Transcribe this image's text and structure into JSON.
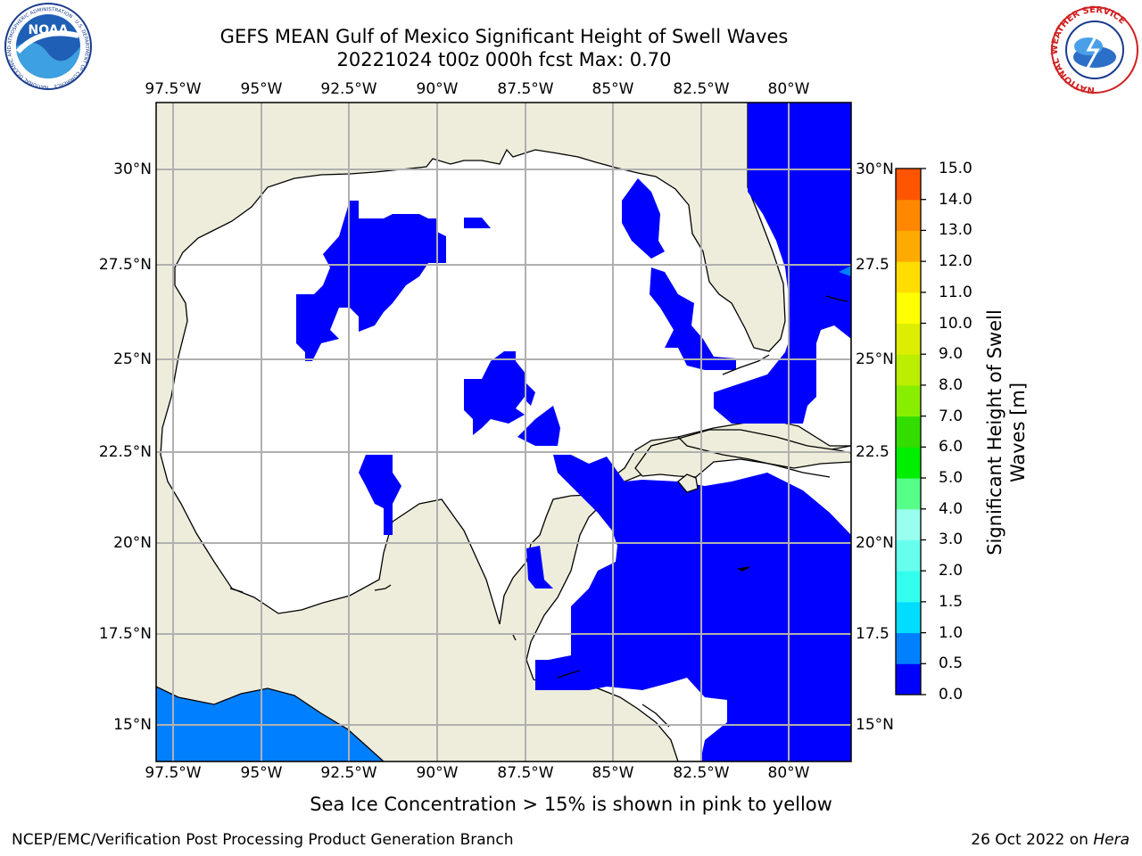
{
  "title": {
    "line1": "GEFS MEAN Gulf of Mexico Significant Height of Swell Waves",
    "line2": "20221024 t00z 000h fcst   Max: 0.70"
  },
  "axes": {
    "lon_labels": [
      "97.5°W",
      "95°W",
      "92.5°W",
      "90°W",
      "87.5°W",
      "85°W",
      "82.5°W",
      "80°W"
    ],
    "lat_labels_left": [
      "30°N",
      "27.5°N",
      "25°N",
      "22.5°N",
      "20°N",
      "17.5°N",
      "15°N"
    ],
    "lat_labels_right": [
      "30°N",
      "27.5",
      "25°N",
      "22.5",
      "20°N",
      "17.5",
      "15°N"
    ]
  },
  "colorbar": {
    "title_line1": "Significant Height of Swell",
    "title_line2": "Waves [m]",
    "ticks": [
      "15.0",
      "14.0",
      "13.0",
      "12.0",
      "11.0",
      "10.0",
      "9.0",
      "8.0",
      "7.0",
      "6.0",
      "5.0",
      "4.0",
      "3.0",
      "2.0",
      "1.5",
      "1.0",
      "0.5",
      "0.0"
    ],
    "colors": [
      "#0000ff",
      "#0080ff",
      "#00ddff",
      "#33ffee",
      "#66ffee",
      "#99ffee",
      "#55ff88",
      "#00ee00",
      "#33dd00",
      "#88ee00",
      "#bbee00",
      "#ddee00",
      "#ffff00",
      "#ffdd00",
      "#ffaa00",
      "#ff8800",
      "#ff5500",
      "#ff2200",
      "#ff0000"
    ]
  },
  "map": {
    "land_color": "#eeeddb",
    "ocean_color": "#ffffff",
    "swell_color": "#0000ff",
    "swell_high_color": "#0080ff",
    "grid_color": "#b0b0b0"
  },
  "logos": {
    "noaa_text": "NOAA",
    "noaa_ring": "NATIONAL OCEANIC AND ATMOSPHERIC ADMINISTRATION · U.S. DEPARTMENT OF COMMERCE",
    "nws_ring": "NATIONAL WEATHER SERVICE"
  },
  "note": "Sea Ice Concentration > 15% is shown in pink to yellow",
  "footer": {
    "left": "NCEP/EMC/Verification Post Processing Product Generation Branch",
    "right_prefix": "26 Oct 2022 on ",
    "right_host": "Hera"
  }
}
